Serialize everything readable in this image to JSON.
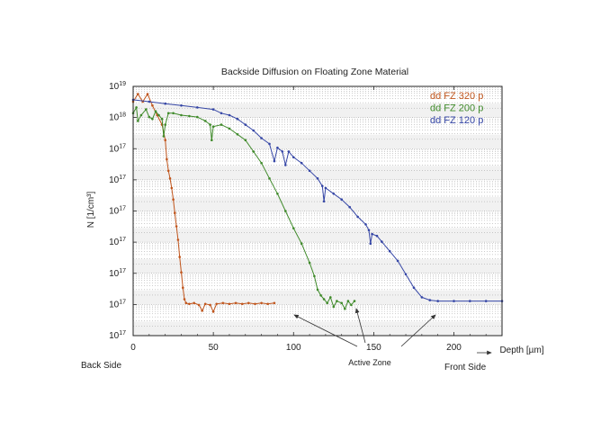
{
  "chart_data": {
    "type": "line",
    "title": "Backside Diffusion on Floating Zone Material",
    "ylabel": "N [1/cm³]",
    "xlabel": "Depth  [µm]",
    "x_ticks": [
      "0",
      "50",
      "100",
      "150",
      "200"
    ],
    "y_tick_labels": [
      "10¹⁹",
      "10¹⁸",
      "10¹⁷",
      "10¹⁷",
      "10¹⁷",
      "10¹⁷",
      "10¹⁷",
      "10¹⁷",
      "10¹⁷"
    ],
    "xlim": [
      0,
      230
    ],
    "y_scale": "log",
    "grid": true,
    "legend_position": "top-right",
    "series": [
      {
        "name": "dd FZ 320 p",
        "color": "#c0551c",
        "points": [
          [
            0,
            4.2
          ],
          [
            3,
            4.6
          ],
          [
            6,
            4.2
          ],
          [
            9,
            4.6
          ],
          [
            12,
            4.0
          ],
          [
            15,
            3.5
          ],
          [
            18,
            3.0
          ],
          [
            20,
            2.2
          ],
          [
            21,
            1.2
          ],
          [
            22,
            0.6
          ],
          [
            23,
            0.2
          ],
          [
            24,
            -0.3
          ],
          [
            25,
            -0.9
          ],
          [
            26,
            -1.6
          ],
          [
            27,
            -2.3
          ],
          [
            28,
            -3.0
          ],
          [
            29,
            -3.9
          ],
          [
            30,
            -4.7
          ],
          [
            31,
            -5.5
          ],
          [
            32,
            -6.1
          ],
          [
            33,
            -6.3
          ],
          [
            35,
            -6.35
          ],
          [
            38,
            -6.3
          ],
          [
            41,
            -6.4
          ],
          [
            43,
            -6.7
          ],
          [
            45,
            -6.35
          ],
          [
            48,
            -6.4
          ],
          [
            50,
            -6.75
          ],
          [
            52,
            -6.35
          ],
          [
            56,
            -6.3
          ],
          [
            60,
            -6.35
          ],
          [
            64,
            -6.3
          ],
          [
            68,
            -6.35
          ],
          [
            72,
            -6.3
          ],
          [
            76,
            -6.35
          ],
          [
            80,
            -6.3
          ],
          [
            84,
            -6.35
          ],
          [
            88,
            -6.3
          ]
        ]
      },
      {
        "name": "dd FZ 200 p",
        "color": "#3f8a2a",
        "points": [
          [
            0,
            3.6
          ],
          [
            2,
            3.9
          ],
          [
            3,
            3.2
          ],
          [
            5,
            3.5
          ],
          [
            8,
            3.8
          ],
          [
            10,
            3.4
          ],
          [
            12,
            3.3
          ],
          [
            14,
            3.7
          ],
          [
            16,
            3.5
          ],
          [
            18,
            3.3
          ],
          [
            19,
            2.4
          ],
          [
            20,
            3.0
          ],
          [
            22,
            3.6
          ],
          [
            25,
            3.6
          ],
          [
            30,
            3.5
          ],
          [
            35,
            3.45
          ],
          [
            40,
            3.4
          ],
          [
            45,
            3.2
          ],
          [
            48,
            3.0
          ],
          [
            49,
            2.2
          ],
          [
            50,
            2.9
          ],
          [
            55,
            3.0
          ],
          [
            60,
            2.8
          ],
          [
            65,
            2.5
          ],
          [
            70,
            2.2
          ],
          [
            75,
            1.6
          ],
          [
            80,
            1.0
          ],
          [
            85,
            0.2
          ],
          [
            90,
            -0.6
          ],
          [
            95,
            -1.5
          ],
          [
            100,
            -2.4
          ],
          [
            105,
            -3.2
          ],
          [
            110,
            -4.2
          ],
          [
            113,
            -4.9
          ],
          [
            115,
            -5.6
          ],
          [
            117,
            -5.9
          ],
          [
            119,
            -6.1
          ],
          [
            121,
            -6.3
          ],
          [
            123,
            -6.0
          ],
          [
            125,
            -6.5
          ],
          [
            127,
            -6.2
          ],
          [
            130,
            -6.3
          ],
          [
            132,
            -6.6
          ],
          [
            134,
            -6.2
          ],
          [
            136,
            -6.4
          ],
          [
            138,
            -6.2
          ]
        ]
      },
      {
        "name": "dd FZ 120 p",
        "color": "#3546a6",
        "points": [
          [
            0,
            4.3
          ],
          [
            10,
            4.2
          ],
          [
            20,
            4.1
          ],
          [
            30,
            4.0
          ],
          [
            40,
            3.9
          ],
          [
            50,
            3.8
          ],
          [
            55,
            3.6
          ],
          [
            60,
            3.5
          ],
          [
            65,
            3.3
          ],
          [
            70,
            3.0
          ],
          [
            75,
            2.7
          ],
          [
            80,
            2.3
          ],
          [
            85,
            2.0
          ],
          [
            88,
            1.1
          ],
          [
            90,
            1.8
          ],
          [
            93,
            1.6
          ],
          [
            95,
            0.9
          ],
          [
            97,
            1.6
          ],
          [
            100,
            1.3
          ],
          [
            105,
            1.0
          ],
          [
            110,
            0.6
          ],
          [
            115,
            0.2
          ],
          [
            118,
            -0.2
          ],
          [
            119,
            -1.0
          ],
          [
            120,
            -0.3
          ],
          [
            125,
            -0.6
          ],
          [
            130,
            -0.9
          ],
          [
            135,
            -1.3
          ],
          [
            140,
            -1.8
          ],
          [
            145,
            -2.2
          ],
          [
            147,
            -2.5
          ],
          [
            148,
            -3.2
          ],
          [
            149,
            -2.7
          ],
          [
            152,
            -2.8
          ],
          [
            155,
            -3.1
          ],
          [
            160,
            -3.6
          ],
          [
            165,
            -4.1
          ],
          [
            170,
            -4.8
          ],
          [
            175,
            -5.5
          ],
          [
            180,
            -6.0
          ],
          [
            185,
            -6.15
          ],
          [
            190,
            -6.2
          ],
          [
            200,
            -6.2
          ],
          [
            210,
            -6.2
          ],
          [
            220,
            -6.2
          ],
          [
            230,
            -6.2
          ]
        ]
      }
    ],
    "annotations": {
      "active_zone": "Active Zone",
      "back_side": "Back Side",
      "front_side": "Front Side"
    }
  }
}
